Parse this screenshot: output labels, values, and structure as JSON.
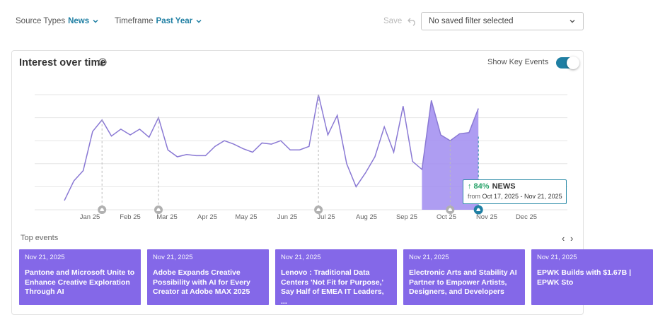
{
  "filters": {
    "source_types": {
      "label": "Source Types",
      "value": "News"
    },
    "timeframe": {
      "label": "Timeframe",
      "value": "Past Year"
    },
    "save_label": "Save",
    "saved_filter": "No saved filter selected"
  },
  "panel": {
    "title": "Interest over time",
    "show_key_events_label": "Show Key Events",
    "show_key_events_on": true
  },
  "tooltip": {
    "change": "↑ 84%",
    "series": "NEWS",
    "from_label": "from",
    "range": "Oct 17, 2025 - Nov 21, 2025"
  },
  "chart_data": {
    "type": "area",
    "series": [
      {
        "name": "NEWS",
        "values": [
          8,
          25,
          34,
          68,
          78,
          64,
          70,
          65,
          70,
          63,
          80,
          52,
          46,
          48,
          47,
          47,
          55,
          60,
          57,
          53,
          50,
          58,
          57,
          60,
          52,
          52,
          55,
          100,
          65,
          82,
          40,
          20,
          32,
          46,
          72,
          50,
          90,
          42,
          35,
          95,
          65,
          60,
          66,
          67,
          88
        ]
      }
    ],
    "x_tick_labels": [
      "Jan 25",
      "Feb 25",
      "Mar 25",
      "Apr 25",
      "May 25",
      "Jun 25",
      "Jul 25",
      "Aug 25",
      "Sep 25",
      "Oct 25",
      "Nov 25",
      "Dec 25"
    ],
    "highlight_range": [
      "Oct 17, 2025",
      "Nov 21, 2025"
    ],
    "ylim": [
      0,
      100
    ],
    "colors": {
      "line": "#8a79d4",
      "highlight": "#a08cf0",
      "grid": "#e6e6e6",
      "marker": "#b0b0b0",
      "current_marker": "#1f7fa3"
    }
  },
  "top_events": {
    "label": "Top events",
    "prev_icon": "‹",
    "next_icon": "›",
    "items": [
      {
        "date": "Nov 21, 2025",
        "title": "Pantone and Microsoft Unite to Enhance Creative Exploration Through AI"
      },
      {
        "date": "Nov 21, 2025",
        "title": "Adobe Expands Creative Possibility with AI for Every Creator at Adobe MAX 2025"
      },
      {
        "date": "Nov 21, 2025",
        "title": "Lenovo : Traditional Data Centers 'Not Fit for Purpose,' Say Half of EMEA IT Leaders, ..."
      },
      {
        "date": "Nov 21, 2025",
        "title": "Electronic Arts and Stability AI Partner to Empower Artists, Designers, and Developers"
      },
      {
        "date": "Nov 21, 2025",
        "title": "EPWK Builds with $1.67B | EPWK Sto"
      }
    ]
  }
}
